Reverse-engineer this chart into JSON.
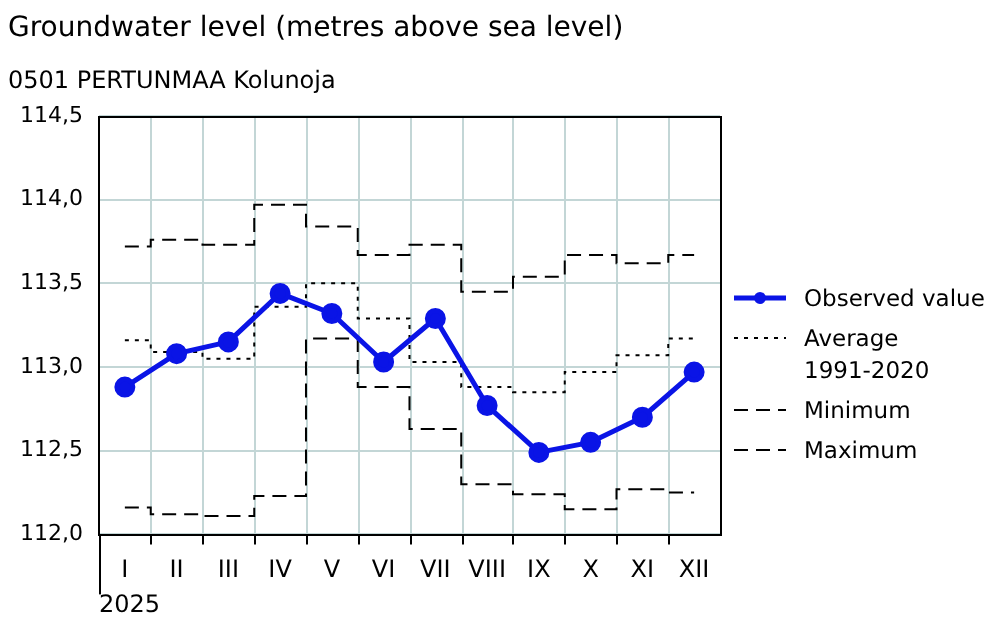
{
  "chart_data": {
    "type": "line",
    "title": "Groundwater level (metres above sea level)",
    "subtitle": "0501 PERTUNMAA Kolunoja",
    "xlabel": "2025",
    "categories": [
      "I",
      "II",
      "III",
      "IV",
      "V",
      "VI",
      "VII",
      "VIII",
      "IX",
      "X",
      "XI",
      "XII"
    ],
    "series": [
      {
        "name": "Observed value",
        "type": "line",
        "color": "#0a14e6",
        "marker": "circle",
        "line_style": "solid",
        "values": [
          112.88,
          113.08,
          113.15,
          113.44,
          113.32,
          113.03,
          113.29,
          112.77,
          112.49,
          112.55,
          112.7,
          112.97
        ]
      },
      {
        "name": "Average 1991-2020",
        "type": "step",
        "color": "#000000",
        "line_style": "dotted",
        "values": [
          113.16,
          113.09,
          113.05,
          113.36,
          113.5,
          113.29,
          113.03,
          112.88,
          112.85,
          112.97,
          113.07,
          113.17
        ]
      },
      {
        "name": "Minimum",
        "type": "step",
        "color": "#000000",
        "line_style": "dashed",
        "values": [
          112.16,
          112.12,
          112.11,
          112.23,
          113.17,
          112.88,
          112.63,
          112.3,
          112.24,
          112.15,
          112.27,
          112.25
        ]
      },
      {
        "name": "Maximum",
        "type": "step",
        "color": "#000000",
        "line_style": "dashed",
        "values": [
          113.72,
          113.76,
          113.73,
          113.97,
          113.84,
          113.67,
          113.73,
          113.45,
          113.54,
          113.67,
          113.62,
          113.67
        ]
      }
    ],
    "ylim": [
      112.0,
      114.5
    ],
    "yticks": [
      {
        "value": 112.0,
        "label": "112,0"
      },
      {
        "value": 112.5,
        "label": "112,5"
      },
      {
        "value": 113.0,
        "label": "113,0"
      },
      {
        "value": 113.5,
        "label": "113,5"
      },
      {
        "value": 114.0,
        "label": "114,0"
      },
      {
        "value": 114.5,
        "label": "114,5"
      }
    ],
    "grid": true,
    "legend": "right"
  }
}
